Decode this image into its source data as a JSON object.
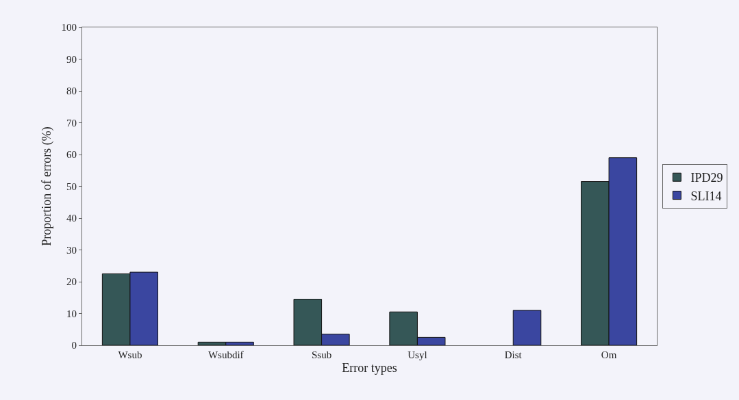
{
  "chart_data": {
    "type": "bar",
    "xlabel": "Error types",
    "ylabel": "Proportion of errors (%)",
    "categories": [
      "Wsub",
      "Wsubdif",
      "Ssub",
      "Usyl",
      "Dist",
      "Om"
    ],
    "series": [
      {
        "name": "IPD29",
        "color": "#355757",
        "values": [
          22.5,
          1,
          14.5,
          10.5,
          null,
          51.5
        ]
      },
      {
        "name": "SLI14",
        "color": "#3a46a0",
        "values": [
          23,
          1,
          3.5,
          2.5,
          11,
          59
        ]
      }
    ],
    "ylim": [
      0,
      100
    ],
    "yticks": [
      0,
      10,
      20,
      30,
      40,
      50,
      60,
      70,
      80,
      90,
      100
    ],
    "grid": false,
    "legend": "right"
  }
}
